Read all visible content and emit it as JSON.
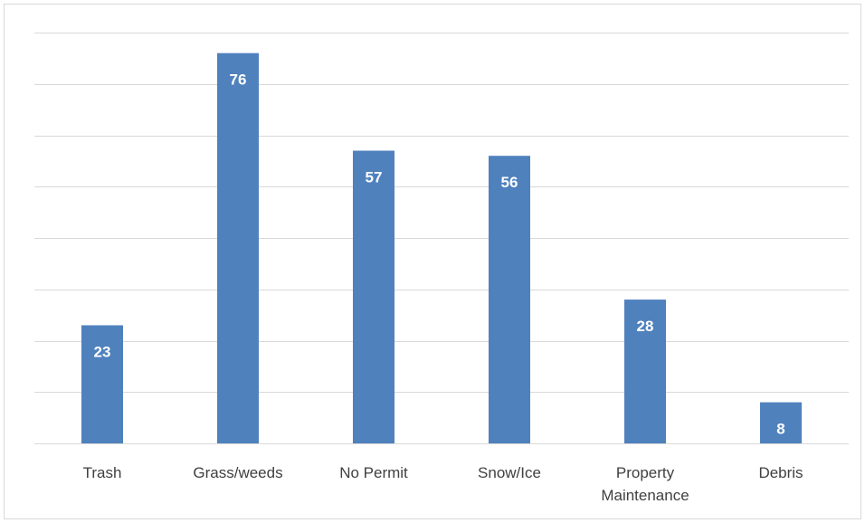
{
  "chart_data": {
    "type": "bar",
    "categories": [
      "Trash",
      "Grass/weeds",
      "No Permit",
      "Snow/Ice",
      "Property Maintenance",
      "Debris"
    ],
    "category_lines": [
      [
        "Trash"
      ],
      [
        "Grass/weeds"
      ],
      [
        "No Permit"
      ],
      [
        "Snow/Ice"
      ],
      [
        "Property",
        "Maintenance"
      ],
      [
        "Debris"
      ]
    ],
    "values": [
      23,
      76,
      57,
      56,
      28,
      8
    ],
    "title": "",
    "xlabel": "",
    "ylabel": "",
    "ylim": [
      0,
      80
    ],
    "grid": true,
    "legend": "none",
    "bar_color": "#4f81bd",
    "data_label_color": "#ffffff",
    "gridline_color": "#d9d9d9",
    "tick_label_color": "#404040"
  }
}
